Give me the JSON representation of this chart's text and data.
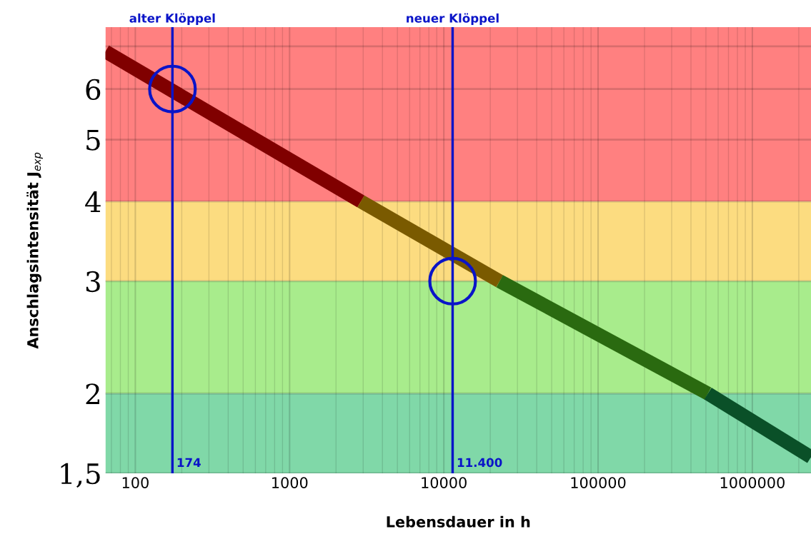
{
  "chart_data": {
    "type": "line",
    "xlabel": "Lebensdauer in h",
    "ylabel": "Anschlagsintensität J$_{exp}$",
    "log": "xy",
    "grid": true,
    "xlim": [
      64,
      2400000
    ],
    "ylim": [
      1.5,
      7.5
    ],
    "xticks": [
      100,
      1000,
      10000,
      100000,
      1000000
    ],
    "yticks": [
      {
        "value": 1.5,
        "label": "1,5"
      },
      2,
      3,
      4,
      5,
      6,
      {
        "value": 7,
        "label": null
      }
    ],
    "bands": [
      {
        "axis": "y",
        "from": 4,
        "to": 7.5,
        "color": "#ff8080"
      },
      {
        "axis": "y",
        "from": 3,
        "to": 4,
        "color": "#fcdc80"
      },
      {
        "axis": "y",
        "from": 2,
        "to": 3,
        "color": "#a8ec8c"
      },
      {
        "axis": "y",
        "from": 1.5,
        "to": 2,
        "color": "#80d8a8"
      }
    ],
    "ref_lines": [
      {
        "axis": "x",
        "value": 174,
        "label": "alter Klöppel",
        "color": "#0a14c8"
      },
      {
        "axis": "x",
        "value": 11400,
        "label": "neuer Klöppel",
        "color": "#0a14c8"
      }
    ],
    "annotations": [
      {
        "text": "174",
        "x": 174,
        "y": 1.5
      },
      {
        "text": "11.400",
        "x": 11400,
        "y": 1.5
      }
    ],
    "series": [
      {
        "color": "#800000",
        "x": [
          64,
          2900
        ],
        "values": [
          6.87,
          4
        ]
      },
      {
        "color": "#7a5a00",
        "x": [
          2900,
          23000
        ],
        "values": [
          4,
          3
        ]
      },
      {
        "color": "#2a6a10",
        "x": [
          23000,
          515000
        ],
        "values": [
          3,
          2
        ]
      },
      {
        "color": "#0a5028",
        "x": [
          515000,
          2400000
        ],
        "values": [
          2,
          1.59
        ]
      },
      {
        "type": "scatter",
        "marker": "circle",
        "color": "#0a14c8",
        "x": [
          174,
          11400
        ],
        "values": [
          6,
          3
        ]
      }
    ]
  }
}
